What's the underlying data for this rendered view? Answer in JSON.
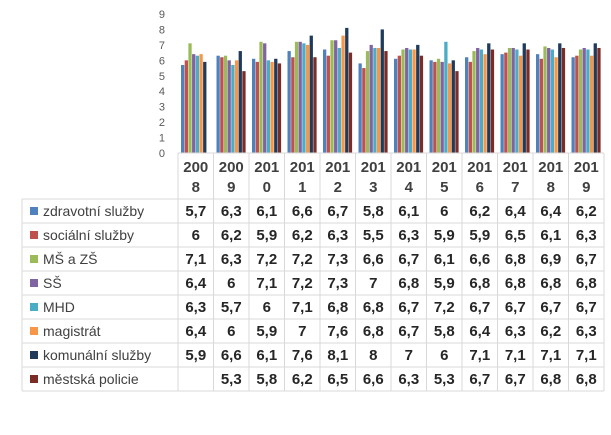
{
  "chart_data": {
    "type": "bar",
    "title": "",
    "xlabel": "",
    "ylabel": "",
    "ylim": [
      0,
      9
    ],
    "yticks": [
      "0",
      "1",
      "2",
      "3",
      "4",
      "5",
      "6",
      "7",
      "8",
      "9"
    ],
    "grid": false,
    "legend": "data table",
    "categories": [
      "2008",
      "2009",
      "2010",
      "2011",
      "2012",
      "2013",
      "2014",
      "2015",
      "2016",
      "2017",
      "2018",
      "2019"
    ],
    "category_labels": [
      [
        "200",
        "8"
      ],
      [
        "200",
        "9"
      ],
      [
        "201",
        "0"
      ],
      [
        "201",
        "1"
      ],
      [
        "201",
        "2"
      ],
      [
        "201",
        "3"
      ],
      [
        "201",
        "4"
      ],
      [
        "201",
        "5"
      ],
      [
        "201",
        "6"
      ],
      [
        "201",
        "7"
      ],
      [
        "201",
        "8"
      ],
      [
        "201",
        "9"
      ]
    ],
    "series": [
      {
        "name": "zdravotní služby",
        "color": "#4f81bd",
        "values": [
          5.7,
          6.3,
          6.1,
          6.6,
          6.7,
          5.8,
          6.1,
          6,
          6.2,
          6.4,
          6.4,
          6.2
        ],
        "labels": [
          "5,7",
          "6,3",
          "6,1",
          "6,6",
          "6,7",
          "5,8",
          "6,1",
          "6",
          "6,2",
          "6,4",
          "6,4",
          "6,2"
        ]
      },
      {
        "name": "sociální služby",
        "color": "#c0504d",
        "values": [
          6,
          6.2,
          5.9,
          6.2,
          6.3,
          5.5,
          6.3,
          5.9,
          5.9,
          6.5,
          6.1,
          6.3
        ],
        "labels": [
          "6",
          "6,2",
          "5,9",
          "6,2",
          "6,3",
          "5,5",
          "6,3",
          "5,9",
          "5,9",
          "6,5",
          "6,1",
          "6,3"
        ]
      },
      {
        "name": "MŠ a ZŠ",
        "color": "#9bbb59",
        "values": [
          7.1,
          6.3,
          7.2,
          7.2,
          7.3,
          6.6,
          6.7,
          6.1,
          6.6,
          6.8,
          6.9,
          6.7
        ],
        "labels": [
          "7,1",
          "6,3",
          "7,2",
          "7,2",
          "7,3",
          "6,6",
          "6,7",
          "6,1",
          "6,6",
          "6,8",
          "6,9",
          "6,7"
        ]
      },
      {
        "name": "SŠ",
        "color": "#8064a2",
        "values": [
          6.4,
          6,
          7.1,
          7.2,
          7.3,
          7,
          6.8,
          5.9,
          6.8,
          6.8,
          6.8,
          6.8
        ],
        "labels": [
          "6,4",
          "6",
          "7,1",
          "7,2",
          "7,3",
          "7",
          "6,8",
          "5,9",
          "6,8",
          "6,8",
          "6,8",
          "6,8"
        ]
      },
      {
        "name": "MHD",
        "color": "#4bacc6",
        "values": [
          6.3,
          5.7,
          6,
          7.1,
          6.8,
          6.8,
          6.7,
          7.2,
          6.7,
          6.7,
          6.7,
          6.7
        ],
        "labels": [
          "6,3",
          "5,7",
          "6",
          "7,1",
          "6,8",
          "6,8",
          "6,7",
          "7,2",
          "6,7",
          "6,7",
          "6,7",
          "6,7"
        ]
      },
      {
        "name": "magistrát",
        "color": "#f79646",
        "values": [
          6.4,
          6,
          5.9,
          7,
          7.6,
          6.8,
          6.7,
          5.8,
          6.4,
          6.3,
          6.2,
          6.3
        ],
        "labels": [
          "6,4",
          "6",
          "5,9",
          "7",
          "7,6",
          "6,8",
          "6,7",
          "5,8",
          "6,4",
          "6,3",
          "6,2",
          "6,3"
        ]
      },
      {
        "name": "komunální služby",
        "color": "#1f3b5c",
        "values": [
          5.9,
          6.6,
          6.1,
          7.6,
          8.1,
          8,
          7,
          6,
          7.1,
          7.1,
          7.1,
          7.1
        ],
        "labels": [
          "5,9",
          "6,6",
          "6,1",
          "7,6",
          "8,1",
          "8",
          "7",
          "6",
          "7,1",
          "7,1",
          "7,1",
          "7,1"
        ]
      },
      {
        "name": "městská policie",
        "color": "#7b2c26",
        "values": [
          null,
          5.3,
          5.8,
          6.2,
          6.5,
          6.6,
          6.3,
          5.3,
          6.7,
          6.7,
          6.8,
          6.8
        ],
        "labels": [
          "",
          "5,3",
          "5,8",
          "6,2",
          "6,5",
          "6,6",
          "6,3",
          "5,3",
          "6,7",
          "6,7",
          "6,8",
          "6,8"
        ]
      }
    ]
  }
}
